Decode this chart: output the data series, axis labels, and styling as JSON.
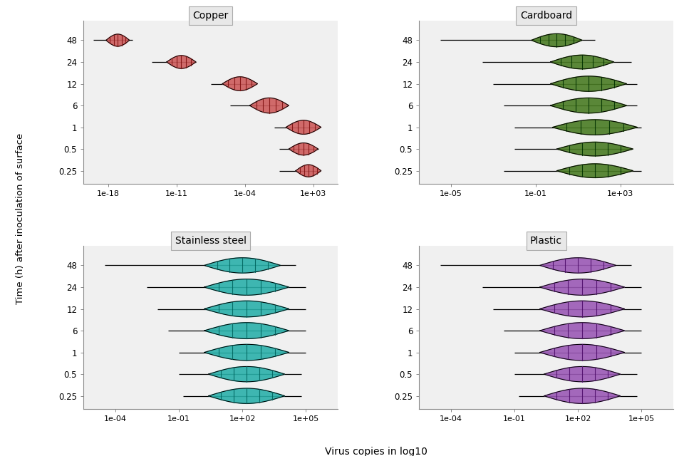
{
  "panels": [
    {
      "title": "Copper",
      "color": "#cd5c5c",
      "xlim": [
        -20.5,
        5.5
      ],
      "xticks": [
        -18,
        -11,
        -4,
        3
      ],
      "xtick_labels": [
        "1e-18",
        "1e-11",
        "1e-04",
        "1e+03"
      ],
      "time_labels": [
        "48",
        "24",
        "12",
        "6",
        "1",
        "0.5",
        "0.25"
      ],
      "time_pos": [
        7,
        6,
        5,
        4,
        3,
        2,
        1
      ],
      "bean_center": [
        -17.0,
        -10.5,
        -4.5,
        -1.5,
        2.0,
        2.0,
        2.5
      ],
      "bean_half_x": [
        1.2,
        1.5,
        1.8,
        2.0,
        1.8,
        1.5,
        1.3
      ],
      "bean_half_y": [
        0.28,
        0.3,
        0.32,
        0.35,
        0.32,
        0.28,
        0.28
      ],
      "whisker_min": [
        -19.5,
        -13.5,
        -7.5,
        -5.5,
        -1.0,
        -0.5,
        -0.5
      ],
      "whisker_max": [
        -15.5,
        -9.0,
        -3.0,
        -0.5,
        3.5,
        3.5,
        3.5
      ]
    },
    {
      "title": "Cardboard",
      "color": "#4a7c24",
      "xlim": [
        -6.5,
        5.5
      ],
      "xticks": [
        -5,
        -1,
        3
      ],
      "xtick_labels": [
        "1e-05",
        "1e-01",
        "1e+03"
      ],
      "time_labels": [
        "48",
        "24",
        "12",
        "6",
        "1",
        "0.5",
        "0.25"
      ],
      "time_pos": [
        7,
        6,
        5,
        4,
        3,
        2,
        1
      ],
      "bean_center": [
        0.0,
        1.2,
        1.5,
        1.5,
        1.8,
        1.8,
        1.8
      ],
      "bean_half_x": [
        1.2,
        1.5,
        1.8,
        1.8,
        2.0,
        1.8,
        1.8
      ],
      "bean_half_y": [
        0.3,
        0.32,
        0.35,
        0.35,
        0.35,
        0.32,
        0.32
      ],
      "whisker_min": [
        -5.5,
        -3.5,
        -3.0,
        -2.5,
        -2.0,
        -2.0,
        -2.5
      ],
      "whisker_max": [
        1.8,
        3.5,
        3.8,
        3.8,
        4.0,
        3.5,
        4.0
      ]
    },
    {
      "title": "Stainless steel",
      "color": "#2ab0aa",
      "xlim": [
        -5.5,
        6.5
      ],
      "xticks": [
        -4,
        -1,
        2,
        5
      ],
      "xtick_labels": [
        "1e-04",
        "1e-01",
        "1e+02",
        "1e+05"
      ],
      "time_labels": [
        "48",
        "24",
        "12",
        "6",
        "1",
        "0.5",
        "0.25"
      ],
      "time_pos": [
        7,
        6,
        5,
        4,
        3,
        2,
        1
      ],
      "bean_center": [
        2.0,
        2.2,
        2.2,
        2.2,
        2.2,
        2.2,
        2.2
      ],
      "bean_half_x": [
        1.8,
        2.0,
        2.0,
        2.0,
        2.0,
        1.8,
        1.8
      ],
      "bean_half_y": [
        0.35,
        0.37,
        0.37,
        0.37,
        0.37,
        0.35,
        0.35
      ],
      "whisker_min": [
        -4.5,
        -2.5,
        -2.0,
        -1.5,
        -1.0,
        -1.0,
        -0.8
      ],
      "whisker_max": [
        4.5,
        5.0,
        5.0,
        5.0,
        5.0,
        4.8,
        4.8
      ]
    },
    {
      "title": "Plastic",
      "color": "#9b59b6",
      "xlim": [
        -5.5,
        6.5
      ],
      "xticks": [
        -4,
        -1,
        2,
        5
      ],
      "xtick_labels": [
        "1e-04",
        "1e-01",
        "1e+02",
        "1e+05"
      ],
      "time_labels": [
        "48",
        "24",
        "12",
        "6",
        "1",
        "0.5",
        "0.25"
      ],
      "time_pos": [
        7,
        6,
        5,
        4,
        3,
        2,
        1
      ],
      "bean_center": [
        2.0,
        2.2,
        2.2,
        2.2,
        2.2,
        2.2,
        2.2
      ],
      "bean_half_x": [
        1.8,
        2.0,
        2.0,
        2.0,
        2.0,
        1.8,
        1.8
      ],
      "bean_half_y": [
        0.35,
        0.37,
        0.37,
        0.37,
        0.37,
        0.35,
        0.35
      ],
      "whisker_min": [
        -4.5,
        -2.5,
        -2.0,
        -1.5,
        -1.0,
        -1.0,
        -0.8
      ],
      "whisker_max": [
        4.5,
        5.0,
        5.0,
        5.0,
        5.0,
        4.8,
        4.8
      ]
    }
  ],
  "ylabel": "Time (h) after inoculation of surface",
  "xlabel": "Virus copies in log10"
}
